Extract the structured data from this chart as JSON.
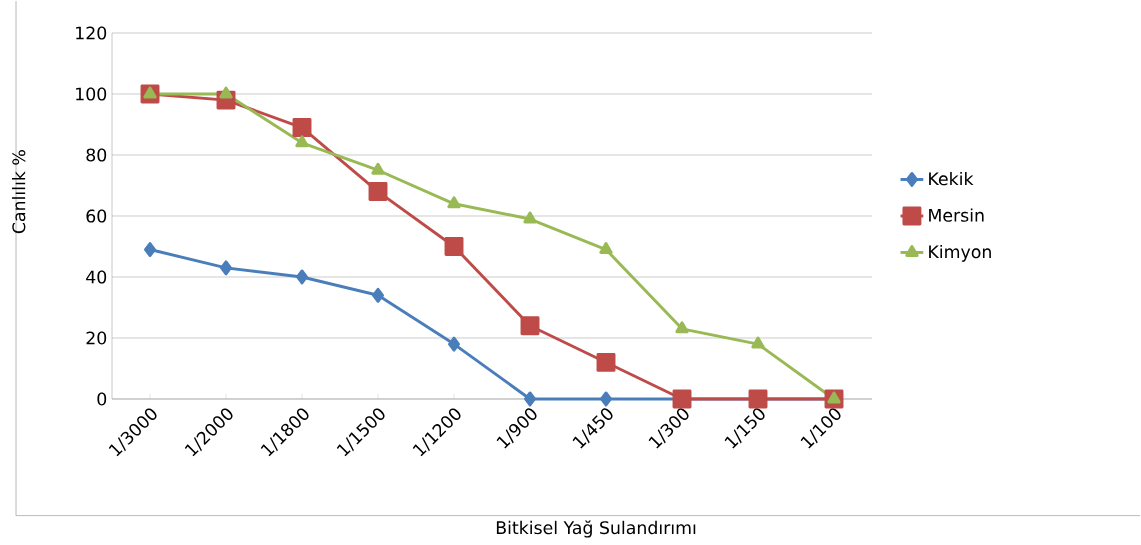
{
  "chart_data": {
    "type": "line",
    "xlabel": "Bitkisel Yağ Sulandırımı",
    "ylabel": "Canlılık %",
    "categories": [
      "1/3000",
      "1/2000",
      "1/1800",
      "1/1500",
      "1/1200",
      "1/900",
      "1/450",
      "1/300",
      "1/150",
      "1/100"
    ],
    "series": [
      {
        "name": "Kekik",
        "color": "#4a7ebb",
        "marker": "diamond",
        "values": [
          49,
          43,
          40,
          34,
          18,
          0,
          0,
          0,
          0,
          0
        ]
      },
      {
        "name": "Mersin",
        "color": "#be4b48",
        "marker": "square",
        "values": [
          100,
          98,
          89,
          68,
          50,
          24,
          12,
          0,
          0,
          0
        ]
      },
      {
        "name": "Kimyon",
        "color": "#98b954",
        "marker": "triangle",
        "values": [
          100,
          100,
          84,
          75,
          64,
          59,
          49,
          23,
          18,
          0
        ]
      }
    ],
    "ylim": [
      0,
      120
    ],
    "yticks": [
      0,
      20,
      40,
      60,
      80,
      100,
      120
    ],
    "grid": "y",
    "legend": "right",
    "line_style": "solid"
  }
}
